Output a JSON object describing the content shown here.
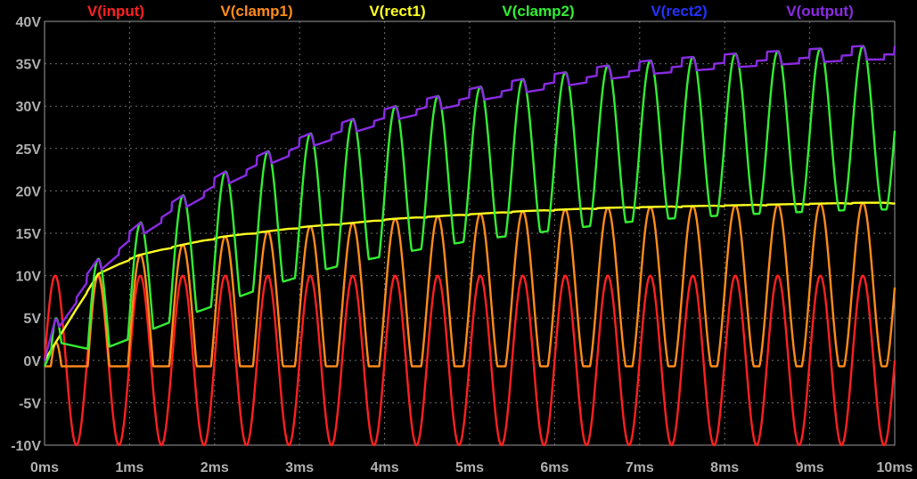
{
  "chart_data": {
    "type": "line",
    "background": "#000000",
    "grid": true,
    "legend": "top",
    "xlim": [
      0,
      10
    ],
    "ylim": [
      -10,
      40
    ],
    "x_ticks": [
      {
        "value": 0,
        "label": "0ms"
      },
      {
        "value": 1,
        "label": "1ms"
      },
      {
        "value": 2,
        "label": "2ms"
      },
      {
        "value": 3,
        "label": "3ms"
      },
      {
        "value": 4,
        "label": "4ms"
      },
      {
        "value": 5,
        "label": "5ms"
      },
      {
        "value": 6,
        "label": "6ms"
      },
      {
        "value": 7,
        "label": "7ms"
      },
      {
        "value": 8,
        "label": "8ms"
      },
      {
        "value": 9,
        "label": "9ms"
      },
      {
        "value": 10,
        "label": "10ms"
      }
    ],
    "y_ticks": [
      {
        "value": 40,
        "label": "40V"
      },
      {
        "value": 35,
        "label": "35V"
      },
      {
        "value": 30,
        "label": "30V"
      },
      {
        "value": 25,
        "label": "25V"
      },
      {
        "value": 20,
        "label": "20V"
      },
      {
        "value": 15,
        "label": "15V"
      },
      {
        "value": 10,
        "label": "10V"
      },
      {
        "value": 5,
        "label": "5V"
      },
      {
        "value": 0,
        "label": "0V"
      },
      {
        "value": -5,
        "label": "-5V"
      },
      {
        "value": -10,
        "label": "-10V"
      }
    ],
    "x_unit": "ms",
    "y_unit": "V",
    "frequency_khz": 2,
    "series": [
      {
        "name": "V(input)",
        "color": "#ff2020",
        "amplitude": 10,
        "offset": 0
      },
      {
        "name": "V(clamp1)",
        "color": "#ff8c1a"
      },
      {
        "name": "V(rect1)",
        "color": "#ffff20"
      },
      {
        "name": "V(clamp2)",
        "color": "#33ee33"
      },
      {
        "name": "V(rect2)",
        "color": "#2233ff"
      },
      {
        "name": "V(output)",
        "color": "#8a2be2"
      }
    ],
    "envelopes": {
      "rect1_peaks": [
        {
          "t": 0.0,
          "v": 0
        },
        {
          "t": 0.63,
          "v": 10.2
        },
        {
          "t": 1.1,
          "v": 12.4
        },
        {
          "t": 1.6,
          "v": 13.6
        },
        {
          "t": 2.1,
          "v": 14.6
        },
        {
          "t": 2.6,
          "v": 15.2
        },
        {
          "t": 3.1,
          "v": 15.8
        },
        {
          "t": 3.6,
          "v": 16.2
        },
        {
          "t": 4.1,
          "v": 16.7
        },
        {
          "t": 4.6,
          "v": 17.0
        },
        {
          "t": 5.1,
          "v": 17.3
        },
        {
          "t": 5.6,
          "v": 17.6
        },
        {
          "t": 6.1,
          "v": 17.8
        },
        {
          "t": 6.6,
          "v": 18.0
        },
        {
          "t": 7.1,
          "v": 18.1
        },
        {
          "t": 7.6,
          "v": 18.2
        },
        {
          "t": 8.1,
          "v": 18.3
        },
        {
          "t": 8.6,
          "v": 18.4
        },
        {
          "t": 9.1,
          "v": 18.5
        },
        {
          "t": 9.6,
          "v": 18.6
        },
        {
          "t": 10.0,
          "v": 18.6
        }
      ],
      "output_peaks": [
        {
          "t": 0.0,
          "v": 0
        },
        {
          "t": 0.13,
          "v": 5.0
        },
        {
          "t": 0.63,
          "v": 12.0
        },
        {
          "t": 1.13,
          "v": 16.3
        },
        {
          "t": 1.63,
          "v": 19.5
        },
        {
          "t": 2.13,
          "v": 22.3
        },
        {
          "t": 2.63,
          "v": 24.7
        },
        {
          "t": 3.13,
          "v": 26.8
        },
        {
          "t": 3.63,
          "v": 28.5
        },
        {
          "t": 4.13,
          "v": 30.0
        },
        {
          "t": 4.63,
          "v": 31.2
        },
        {
          "t": 5.13,
          "v": 32.3
        },
        {
          "t": 5.63,
          "v": 33.2
        },
        {
          "t": 6.13,
          "v": 34.0
        },
        {
          "t": 6.63,
          "v": 34.8
        },
        {
          "t": 7.13,
          "v": 35.4
        },
        {
          "t": 7.63,
          "v": 35.8
        },
        {
          "t": 8.13,
          "v": 36.2
        },
        {
          "t": 8.63,
          "v": 36.5
        },
        {
          "t": 9.13,
          "v": 36.8
        },
        {
          "t": 9.63,
          "v": 37.1
        },
        {
          "t": 10.0,
          "v": 37.1
        }
      ]
    }
  }
}
